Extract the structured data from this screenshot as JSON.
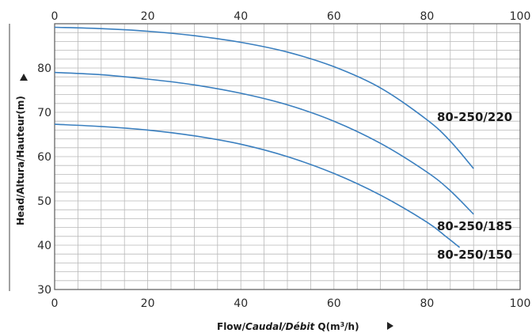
{
  "chart_data": {
    "type": "line",
    "x_ticks": [
      "0",
      "20",
      "40",
      "60",
      "80",
      "100"
    ],
    "y_ticks": [
      "30",
      "40",
      "50",
      "60",
      "70",
      "80"
    ],
    "xlim": [
      0,
      100
    ],
    "ylim": [
      30,
      90
    ],
    "grid": true,
    "xlabel": {
      "main": "Flow/",
      "italic": "Caudal/Débit",
      "tail": " Q(m",
      "sup": "3",
      "end": "/h)"
    },
    "ylabel": "Head/Altura/Hauteur(m)",
    "series": [
      {
        "name": "80-250/220",
        "x": [
          0,
          10,
          20,
          30,
          40,
          50,
          60,
          70,
          80,
          85,
          90
        ],
        "y": [
          89.2,
          88.9,
          88.3,
          87.3,
          85.8,
          83.6,
          80.3,
          75.5,
          68.3,
          63.5,
          57.3
        ]
      },
      {
        "name": "80-250/185",
        "x": [
          0,
          10,
          20,
          30,
          40,
          50,
          60,
          70,
          80,
          85,
          90
        ],
        "y": [
          79.0,
          78.5,
          77.5,
          76.2,
          74.3,
          71.7,
          68.0,
          63.0,
          56.5,
          52.3,
          47.0
        ]
      },
      {
        "name": "80-250/150",
        "x": [
          0,
          10,
          20,
          30,
          40,
          50,
          60,
          70,
          80,
          84,
          87
        ],
        "y": [
          67.3,
          66.8,
          66.0,
          64.7,
          62.8,
          60.0,
          56.2,
          51.3,
          45.2,
          42.0,
          39.5
        ]
      }
    ]
  },
  "colors": {
    "line": "#3a7fbf",
    "grid": "#b9b9b9",
    "frame": "#5a5a5a",
    "arrow": "#222222"
  }
}
